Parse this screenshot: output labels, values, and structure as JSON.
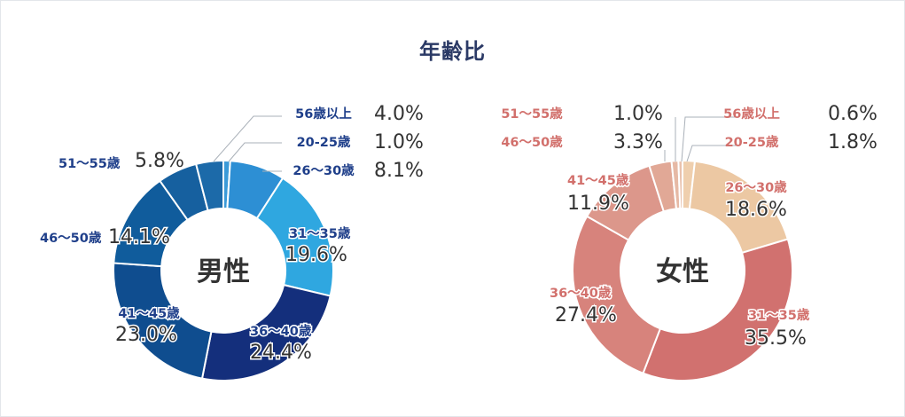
{
  "title": "年齢比",
  "chart_data": [
    {
      "type": "donut",
      "center_label": "男性",
      "label_color": "#1f3f8a",
      "categories": [
        "20-25歳",
        "26〜30歳",
        "31〜35歳",
        "36〜40歳",
        "41〜45歳",
        "46〜50歳",
        "51〜55歳",
        "56歳以上"
      ],
      "values": [
        1.0,
        8.1,
        19.6,
        24.4,
        23.0,
        14.1,
        5.8,
        4.0
      ],
      "value_labels": [
        "1.0%",
        "8.1%",
        "19.6%",
        "24.4%",
        "23.0%",
        "14.1%",
        "5.8%",
        "4.0%"
      ],
      "colors": [
        "#3b9ad8",
        "#2d8fd4",
        "#2fa7e0",
        "#142f7c",
        "#0f4d8f",
        "#105c9c",
        "#16609f",
        "#1c6aa9"
      ]
    },
    {
      "type": "donut",
      "center_label": "女性",
      "label_color": "#d2706c",
      "categories": [
        "20-25歳",
        "26〜30歳",
        "31〜35歳",
        "36〜40歳",
        "41〜45歳",
        "46〜50歳",
        "51〜55歳",
        "56歳以上"
      ],
      "values": [
        1.8,
        18.6,
        35.5,
        27.4,
        11.9,
        3.3,
        1.0,
        0.6
      ],
      "value_labels": [
        "1.8%",
        "18.6%",
        "35.5%",
        "27.4%",
        "11.9%",
        "3.3%",
        "1.0%",
        "0.6%"
      ],
      "colors": [
        "#efcfae",
        "#ecc8a3",
        "#d1716f",
        "#d7837c",
        "#dc978b",
        "#e1a896",
        "#e6b9a5",
        "#e9c2ae"
      ]
    }
  ]
}
